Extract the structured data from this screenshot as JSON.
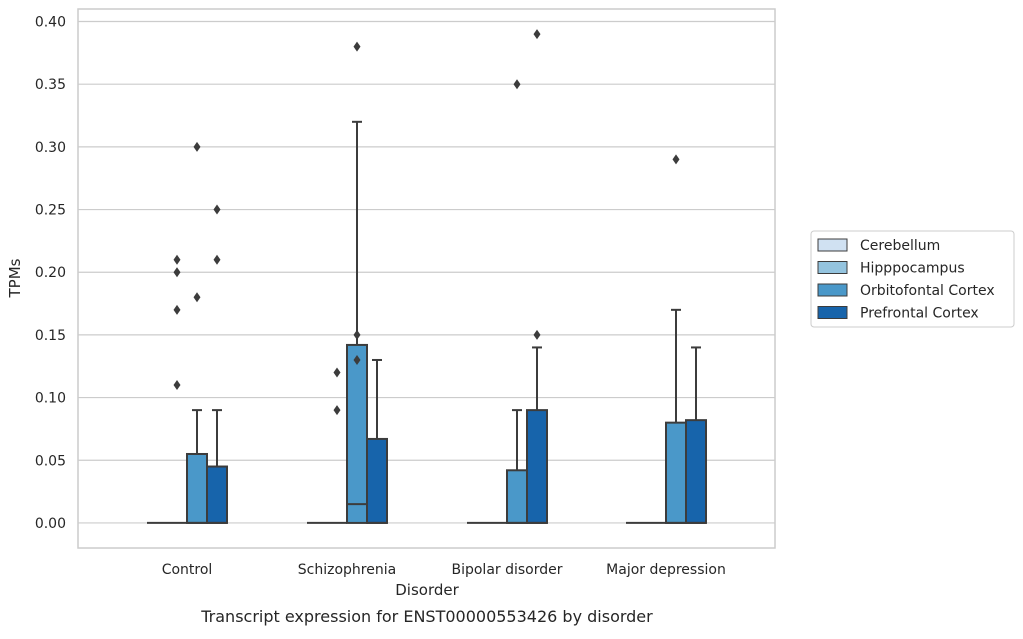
{
  "chart_data": {
    "type": "box",
    "title": "",
    "caption": "Transcript expression for ENST00000553426 by disorder",
    "xlabel": "Disorder",
    "ylabel": "TPMs",
    "ylim": [
      -0.02,
      0.41
    ],
    "yticks": [
      0.0,
      0.05,
      0.1,
      0.15,
      0.2,
      0.25,
      0.3,
      0.35,
      0.4
    ],
    "ytick_labels": [
      "0.00",
      "0.05",
      "0.10",
      "0.15",
      "0.20",
      "0.25",
      "0.30",
      "0.35",
      "0.40"
    ],
    "grid": "horizontal",
    "legend_position": "right",
    "categories": [
      "Control",
      "Schizophrenia",
      "Bipolar disorder",
      "Major depression"
    ],
    "series": [
      {
        "name": "Cerebellum",
        "color": "#d0e1f2",
        "boxes": [
          {
            "q1": 0,
            "median": 0,
            "q3": 0,
            "whislo": 0,
            "whishi": 0,
            "fliers": []
          },
          {
            "q1": 0,
            "median": 0,
            "q3": 0,
            "whislo": 0,
            "whishi": 0,
            "fliers": []
          },
          {
            "q1": 0,
            "median": 0,
            "q3": 0,
            "whislo": 0,
            "whishi": 0,
            "fliers": []
          },
          {
            "q1": 0,
            "median": 0,
            "q3": 0,
            "whislo": 0,
            "whishi": 0,
            "fliers": []
          }
        ]
      },
      {
        "name": "Hipppocampus",
        "color": "#94c4df",
        "boxes": [
          {
            "q1": 0,
            "median": 0,
            "q3": 0,
            "whislo": 0,
            "whishi": 0,
            "fliers": [
              0.11,
              0.17,
              0.2,
              0.21
            ]
          },
          {
            "q1": 0,
            "median": 0,
            "q3": 0,
            "whislo": 0,
            "whishi": 0,
            "fliers": [
              0.09,
              0.12
            ]
          },
          {
            "q1": 0,
            "median": 0,
            "q3": 0,
            "whislo": 0,
            "whishi": 0,
            "fliers": []
          },
          {
            "q1": 0,
            "median": 0,
            "q3": 0,
            "whislo": 0,
            "whishi": 0,
            "fliers": []
          }
        ]
      },
      {
        "name": "Orbitofontal Cortex",
        "color": "#4a98c9",
        "boxes": [
          {
            "q1": 0,
            "median": 0,
            "q3": 0.055,
            "whislo": 0,
            "whishi": 0.09,
            "fliers": [
              0.18,
              0.3
            ]
          },
          {
            "q1": 0,
            "median": 0.015,
            "q3": 0.142,
            "whislo": 0,
            "whishi": 0.32,
            "fliers": [
              0.13,
              0.15,
              0.38
            ]
          },
          {
            "q1": 0,
            "median": 0,
            "q3": 0.042,
            "whislo": 0,
            "whishi": 0.09,
            "fliers": [
              0.35
            ]
          },
          {
            "q1": 0,
            "median": 0,
            "q3": 0.08,
            "whislo": 0,
            "whishi": 0.17,
            "fliers": [
              0.29
            ]
          }
        ]
      },
      {
        "name": "Prefrontal Cortex",
        "color": "#1764ab",
        "boxes": [
          {
            "q1": 0,
            "median": 0,
            "q3": 0.045,
            "whislo": 0,
            "whishi": 0.09,
            "fliers": [
              0.21,
              0.25
            ]
          },
          {
            "q1": 0,
            "median": 0,
            "q3": 0.067,
            "whislo": 0,
            "whishi": 0.13,
            "fliers": []
          },
          {
            "q1": 0,
            "median": 0,
            "q3": 0.09,
            "whislo": 0,
            "whishi": 0.14,
            "fliers": [
              0.15,
              0.39
            ]
          },
          {
            "q1": 0,
            "median": 0,
            "q3": 0.082,
            "whislo": 0,
            "whishi": 0.14,
            "fliers": []
          }
        ]
      }
    ]
  }
}
